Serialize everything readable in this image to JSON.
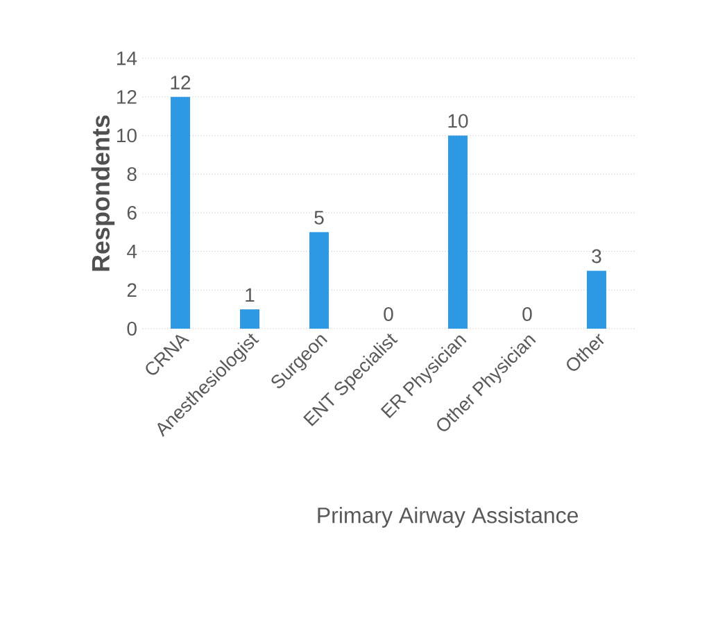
{
  "chart_data": {
    "type": "bar",
    "xlabel": "Primary Airway Assistance",
    "ylabel": "Respondents",
    "categories": [
      "CRNA",
      "Anesthesiologist",
      "Surgeon",
      "ENT Specialist",
      "ER Physician",
      "Other Physician",
      "Other"
    ],
    "values": [
      12,
      1,
      5,
      0,
      10,
      0,
      3
    ],
    "color": "#2e9ae6",
    "ylim": [
      0,
      14
    ],
    "yticks": [
      0,
      2,
      4,
      6,
      8,
      10,
      12,
      14
    ],
    "grid": "y",
    "data_labels": true
  }
}
